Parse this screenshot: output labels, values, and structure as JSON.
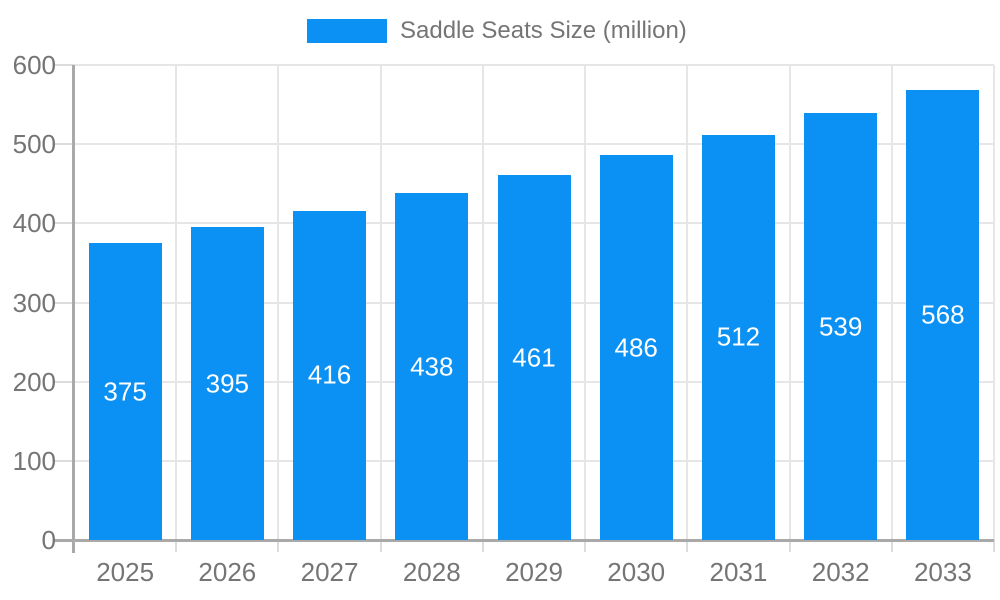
{
  "legend": {
    "label": "Saddle Seats Size (million)"
  },
  "chart_data": {
    "type": "bar",
    "title": "Saddle Seats Size (million)",
    "series_name": "Saddle Seats Size (million)",
    "categories": [
      "2025",
      "2026",
      "2027",
      "2028",
      "2029",
      "2030",
      "2031",
      "2032",
      "2033"
    ],
    "values": [
      375,
      395,
      416,
      438,
      461,
      486,
      512,
      539,
      568
    ],
    "bar_labels": [
      375,
      395,
      416,
      438,
      461,
      486,
      512,
      539,
      568
    ],
    "xlabel": "",
    "ylabel": "",
    "ylim": [
      0,
      600
    ],
    "yticks": [
      0,
      100,
      200,
      300,
      400,
      500,
      600
    ],
    "grid": true,
    "legend_position": "top-center",
    "bar_label_position": "center-inside",
    "colors": {
      "bar": "#0b90f3",
      "bar_label": "#ffffff",
      "gridline": "#e6e6e6",
      "tick": "#dcdcdc",
      "axis_line": "#a9a9a9",
      "text": "#757575",
      "background": "#ffffff"
    }
  }
}
